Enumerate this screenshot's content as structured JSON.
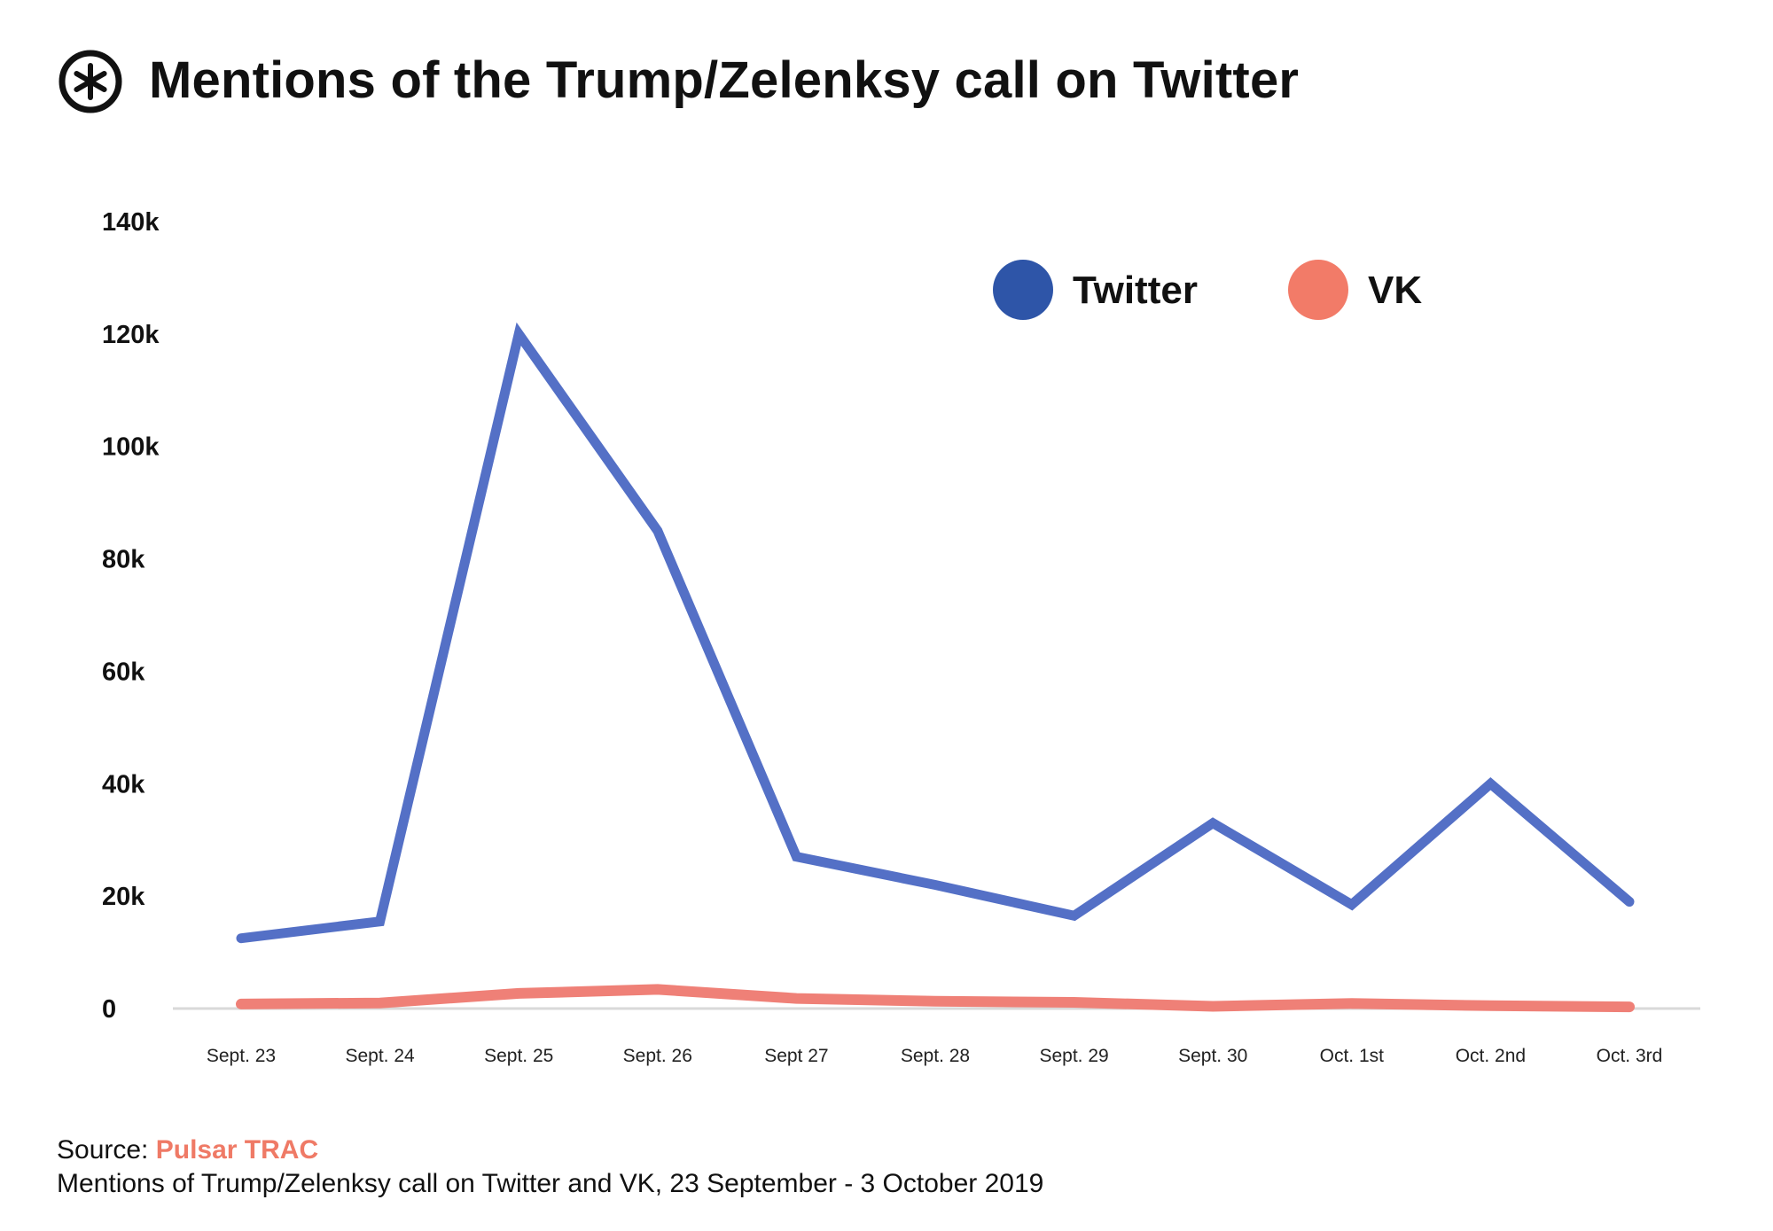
{
  "header": {
    "title": "Mentions of the Trump/Zelenksy call on Twitter",
    "logo_icon": "asterisk-circle-icon"
  },
  "footer": {
    "source_prefix": "Source: ",
    "source_link": "Pulsar TRAC",
    "caption": "Mentions of Trump/Zelenksy call on Twitter and VK, 23 September - 3  October 2019"
  },
  "colors": {
    "twitter_line": "#5470c6",
    "twitter_legend": "#2e55a8",
    "vk": "#ef8077",
    "vk_legend": "#f27b68",
    "baseline": "#d9d9d9",
    "accent_source": "#ef7a66"
  },
  "chart_data": {
    "type": "line",
    "title": "Mentions of the Trump/Zelenksy call on Twitter",
    "xlabel": "",
    "ylabel": "",
    "categories": [
      "Sept. 23",
      "Sept. 24",
      "Sept. 25",
      "Sept. 26",
      "Sept 27",
      "Sept. 28",
      "Sept. 29",
      "Sept. 30",
      "Oct. 1st",
      "Oct. 2nd",
      "Oct. 3rd"
    ],
    "y_ticks": [
      0,
      20000,
      40000,
      60000,
      80000,
      100000,
      120000,
      140000
    ],
    "y_tick_labels": [
      "0",
      "20k",
      "40k",
      "60k",
      "80k",
      "100k",
      "120k",
      "140k"
    ],
    "ylim": [
      0,
      140000
    ],
    "grid": false,
    "legend_position": "top-right",
    "series": [
      {
        "name": "Twitter",
        "values": [
          12500,
          15500,
          120000,
          85000,
          27000,
          22000,
          16500,
          33000,
          18500,
          40000,
          19000
        ]
      },
      {
        "name": "VK",
        "values": [
          800,
          1000,
          2700,
          3400,
          1800,
          1300,
          1100,
          400,
          900,
          500,
          300
        ]
      }
    ]
  }
}
